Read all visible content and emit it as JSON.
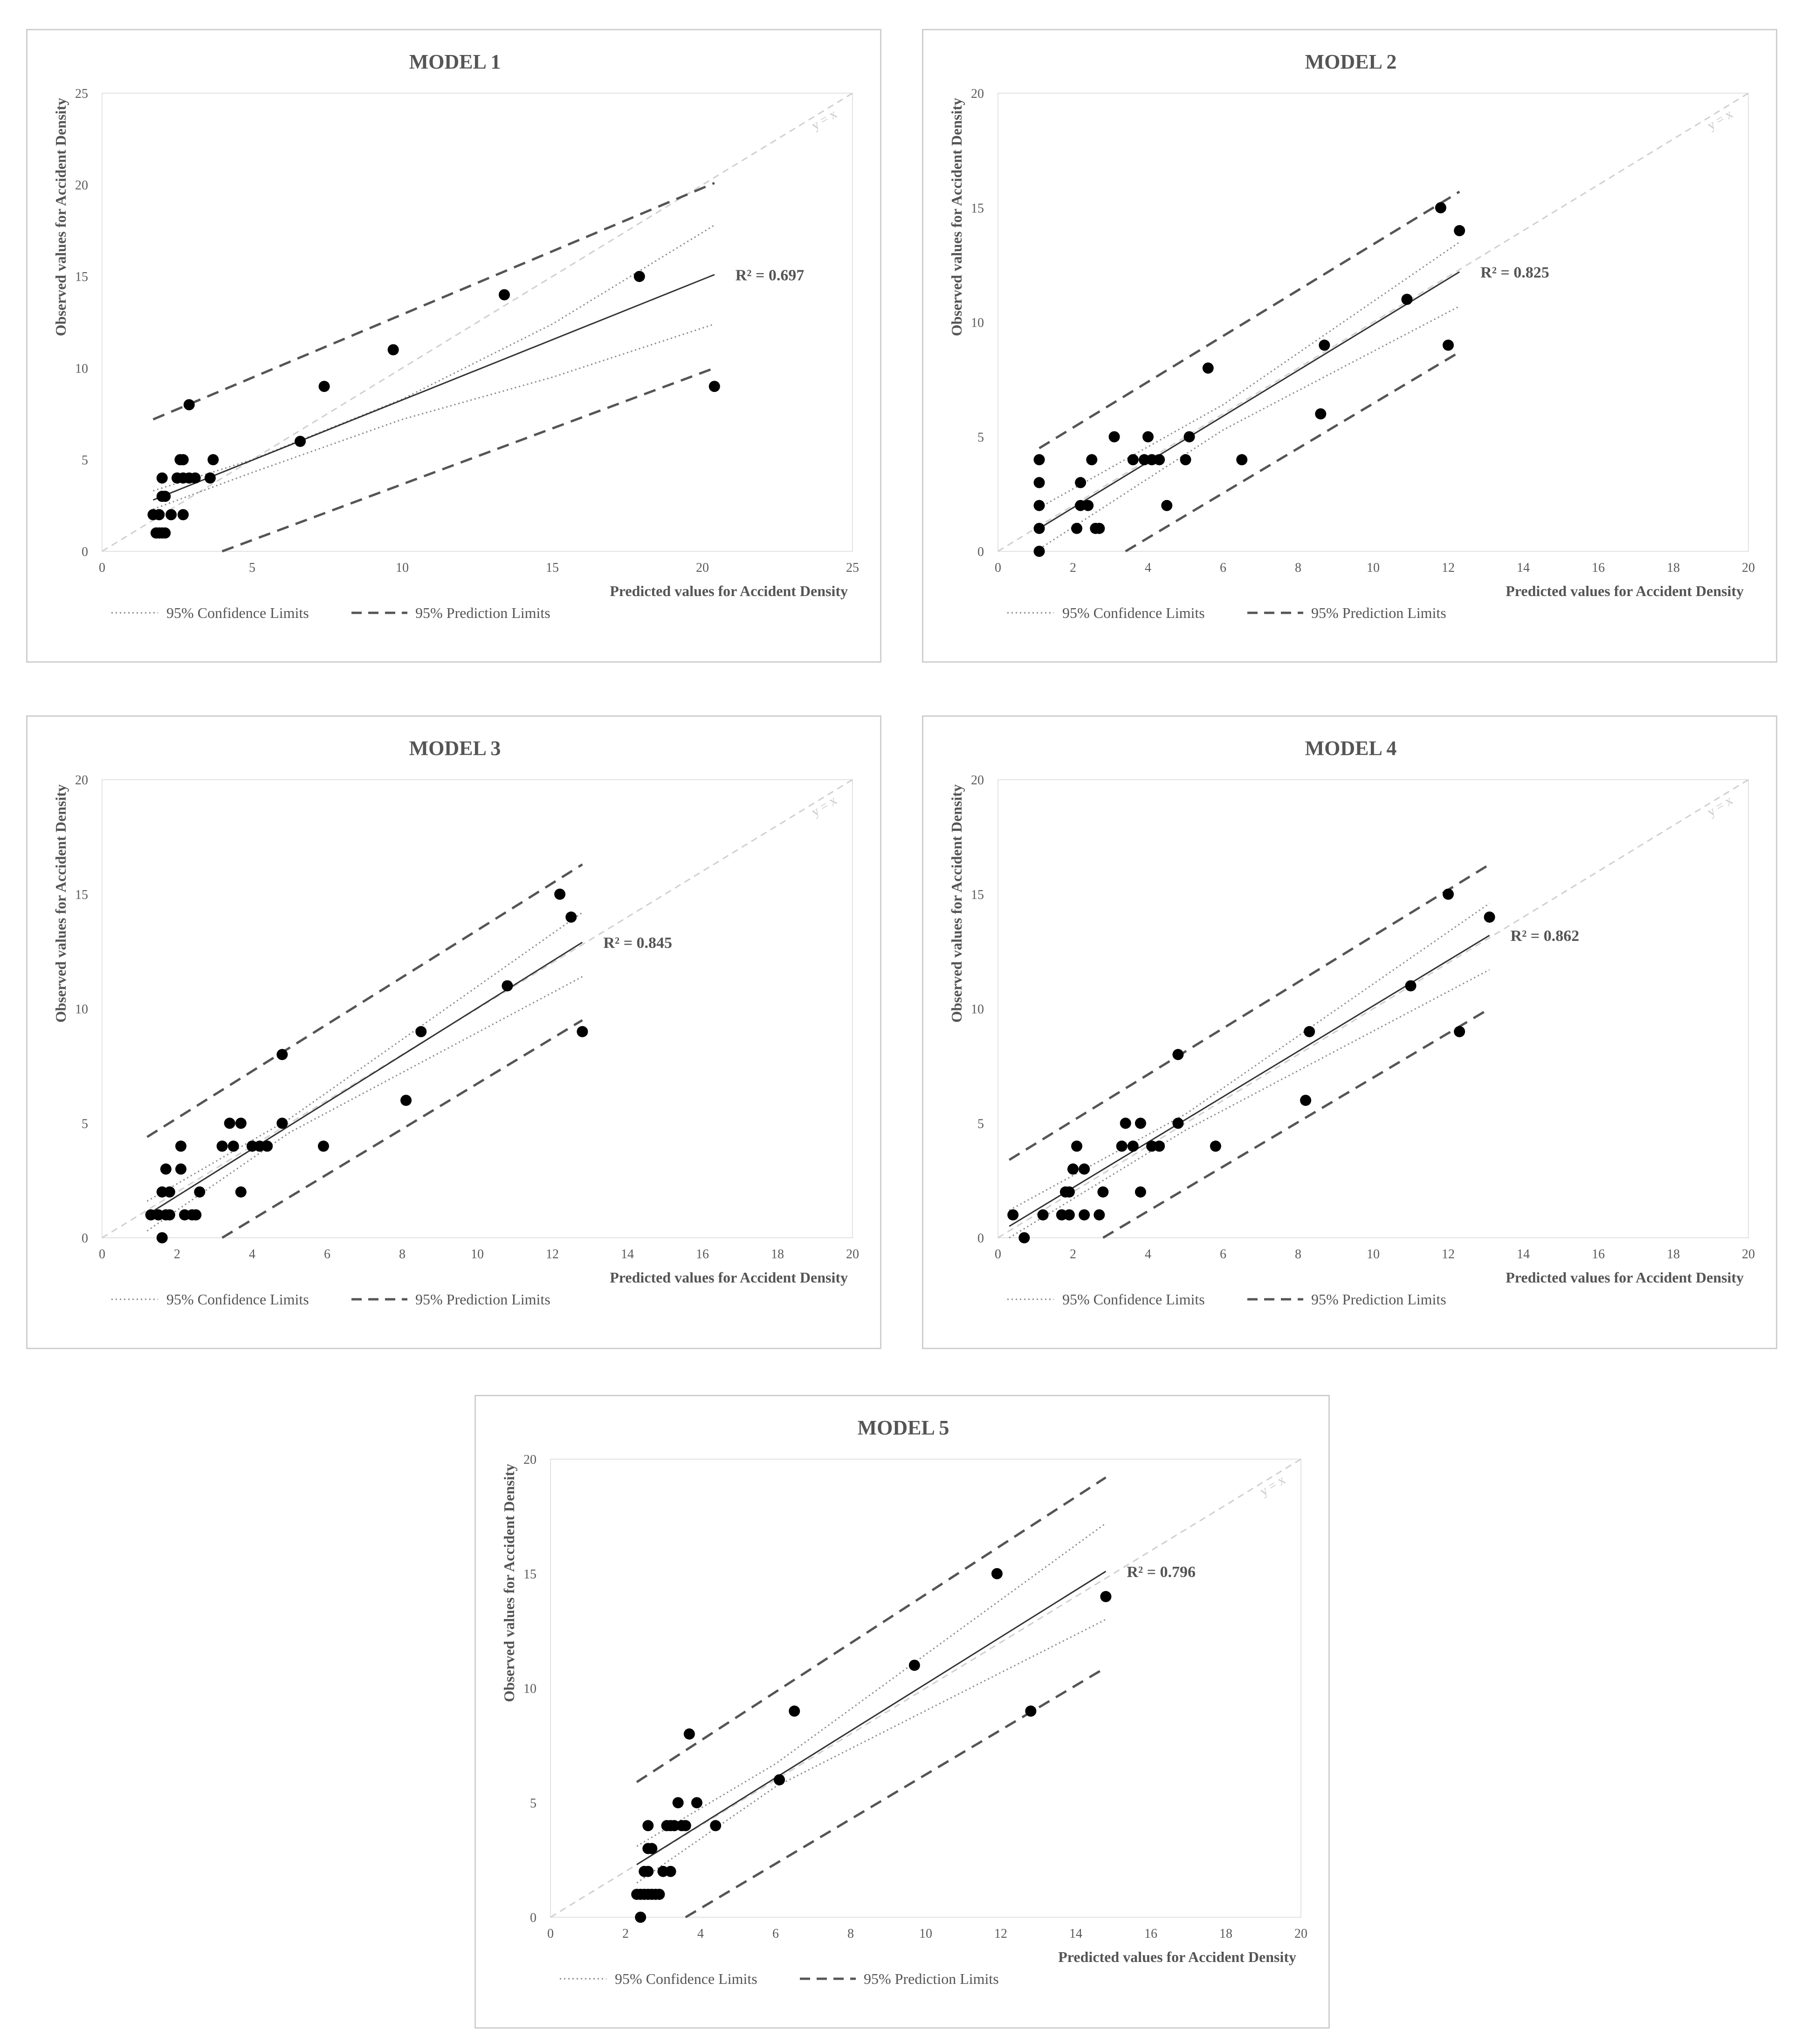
{
  "colors": {
    "points": "#000000",
    "fit_line": "#333333",
    "confidence": "#8a8a8a",
    "prediction": "#555555",
    "identity": "#d0d0d0",
    "axis": "#bbbbbb",
    "text": "#555555"
  },
  "legend": {
    "confidence": "95% Confidence Limits",
    "prediction": "95% Prediction Limits"
  },
  "chart_data": [
    {
      "type": "scatter",
      "title": "MODEL 1",
      "xlabel": "Predicted values for Accident Density",
      "ylabel": "Observed values for Accident Density",
      "xlim": [
        0,
        25
      ],
      "ylim": [
        0,
        25
      ],
      "xticks": [
        0,
        5,
        10,
        15,
        20,
        25
      ],
      "yticks": [
        0,
        5,
        10,
        15,
        20,
        25
      ],
      "r2_label": "R² = 0.697",
      "identity_label": "y = x",
      "legend_position": "bottom-left",
      "points": [
        [
          1.8,
          1
        ],
        [
          1.9,
          1
        ],
        [
          2.0,
          1
        ],
        [
          2.1,
          1
        ],
        [
          1.7,
          2
        ],
        [
          1.9,
          2
        ],
        [
          2.3,
          2
        ],
        [
          2.7,
          2
        ],
        [
          2.0,
          3
        ],
        [
          2.1,
          3
        ],
        [
          2.0,
          4
        ],
        [
          2.5,
          4
        ],
        [
          2.7,
          4
        ],
        [
          2.9,
          4
        ],
        [
          3.1,
          4
        ],
        [
          3.6,
          4
        ],
        [
          2.6,
          5
        ],
        [
          2.7,
          5
        ],
        [
          3.7,
          5
        ],
        [
          2.9,
          8
        ],
        [
          6.6,
          6
        ],
        [
          7.4,
          9
        ],
        [
          9.7,
          11
        ],
        [
          13.4,
          14
        ],
        [
          17.9,
          15
        ],
        [
          20.4,
          9
        ]
      ],
      "fit": [
        [
          1.7,
          2.8
        ],
        [
          20.4,
          15.1
        ]
      ],
      "confidence_upper": [
        [
          1.7,
          3.3
        ],
        [
          5,
          5.0
        ],
        [
          10,
          8.3
        ],
        [
          15,
          12.4
        ],
        [
          20.4,
          17.8
        ]
      ],
      "confidence_lower": [
        [
          1.7,
          2.3
        ],
        [
          5,
          4.3
        ],
        [
          10,
          7.2
        ],
        [
          15,
          9.5
        ],
        [
          20.4,
          12.4
        ]
      ],
      "prediction_upper": [
        [
          1.7,
          7.2
        ],
        [
          20.4,
          20.1
        ]
      ],
      "prediction_lower": [
        [
          4.0,
          0
        ],
        [
          20.4,
          10.0
        ]
      ]
    },
    {
      "type": "scatter",
      "title": "MODEL 2",
      "xlabel": "Predicted values for Accident Density",
      "ylabel": "Observed values for Accident Density",
      "xlim": [
        0,
        20
      ],
      "ylim": [
        0,
        20
      ],
      "xticks": [
        0,
        2,
        4,
        6,
        8,
        10,
        12,
        14,
        16,
        18,
        20
      ],
      "yticks": [
        0,
        5,
        10,
        15,
        20
      ],
      "r2_label": "R² = 0.825",
      "identity_label": "y = x",
      "legend_position": "bottom-left",
      "points": [
        [
          1.1,
          0
        ],
        [
          1.1,
          1
        ],
        [
          1.1,
          2
        ],
        [
          1.1,
          3
        ],
        [
          1.1,
          4
        ],
        [
          2.1,
          1
        ],
        [
          2.6,
          1
        ],
        [
          2.7,
          1
        ],
        [
          2.2,
          2
        ],
        [
          2.4,
          2
        ],
        [
          2.2,
          3
        ],
        [
          2.5,
          4
        ],
        [
          3.6,
          4
        ],
        [
          3.9,
          4
        ],
        [
          4.1,
          4
        ],
        [
          4.3,
          4
        ],
        [
          5.0,
          4
        ],
        [
          6.5,
          4
        ],
        [
          3.1,
          5
        ],
        [
          4.0,
          5
        ],
        [
          5.1,
          5
        ],
        [
          4.5,
          2
        ],
        [
          5.6,
          8
        ],
        [
          8.6,
          6
        ],
        [
          8.7,
          9
        ],
        [
          10.9,
          11
        ],
        [
          11.8,
          15
        ],
        [
          12.0,
          9
        ],
        [
          12.3,
          14
        ]
      ],
      "fit": [
        [
          1.1,
          1.0
        ],
        [
          12.3,
          12.2
        ]
      ],
      "confidence_upper": [
        [
          1.1,
          1.9
        ],
        [
          6,
          6.4
        ],
        [
          12.3,
          13.5
        ]
      ],
      "confidence_lower": [
        [
          1.1,
          0.1
        ],
        [
          6,
          5.3
        ],
        [
          12.3,
          10.7
        ]
      ],
      "prediction_upper": [
        [
          1.1,
          4.5
        ],
        [
          12.3,
          15.7
        ]
      ],
      "prediction_lower": [
        [
          3.4,
          0
        ],
        [
          12.3,
          8.7
        ]
      ]
    },
    {
      "type": "scatter",
      "title": "MODEL 3",
      "xlabel": "Predicted values for Accident Density",
      "ylabel": "Observed values for Accident Density",
      "xlim": [
        0,
        20
      ],
      "ylim": [
        0,
        20
      ],
      "xticks": [
        0,
        2,
        4,
        6,
        8,
        10,
        12,
        14,
        16,
        18,
        20
      ],
      "yticks": [
        0,
        5,
        10,
        15,
        20
      ],
      "r2_label": "R² = 0.845",
      "identity_label": "y = x",
      "legend_position": "bottom-left",
      "points": [
        [
          1.6,
          0
        ],
        [
          1.3,
          1
        ],
        [
          1.5,
          1
        ],
        [
          1.7,
          1
        ],
        [
          1.8,
          1
        ],
        [
          2.2,
          1
        ],
        [
          2.4,
          1
        ],
        [
          2.5,
          1
        ],
        [
          1.6,
          2
        ],
        [
          1.8,
          2
        ],
        [
          2.6,
          2
        ],
        [
          3.7,
          2
        ],
        [
          1.7,
          3
        ],
        [
          2.1,
          3
        ],
        [
          2.1,
          4
        ],
        [
          3.2,
          4
        ],
        [
          3.5,
          4
        ],
        [
          4.0,
          4
        ],
        [
          4.2,
          4
        ],
        [
          4.4,
          4
        ],
        [
          5.9,
          4
        ],
        [
          3.4,
          5
        ],
        [
          3.7,
          5
        ],
        [
          4.8,
          5
        ],
        [
          4.8,
          8
        ],
        [
          8.1,
          6
        ],
        [
          8.5,
          9
        ],
        [
          10.8,
          11
        ],
        [
          12.2,
          15
        ],
        [
          12.5,
          14
        ],
        [
          12.8,
          9
        ]
      ],
      "fit": [
        [
          1.2,
          1.0
        ],
        [
          12.8,
          12.9
        ]
      ],
      "confidence_upper": [
        [
          1.2,
          1.6
        ],
        [
          5,
          5.2
        ],
        [
          12.8,
          14.2
        ]
      ],
      "confidence_lower": [
        [
          1.2,
          0.3
        ],
        [
          5,
          4.6
        ],
        [
          12.8,
          11.4
        ]
      ],
      "prediction_upper": [
        [
          1.2,
          4.4
        ],
        [
          12.8,
          16.3
        ]
      ],
      "prediction_lower": [
        [
          3.2,
          0
        ],
        [
          12.8,
          9.5
        ]
      ]
    },
    {
      "type": "scatter",
      "title": "MODEL 4",
      "xlabel": "Predicted values for Accident Density",
      "ylabel": "Observed values for Accident Density",
      "xlim": [
        0,
        20
      ],
      "ylim": [
        0,
        20
      ],
      "xticks": [
        0,
        2,
        4,
        6,
        8,
        10,
        12,
        14,
        16,
        18,
        20
      ],
      "yticks": [
        0,
        5,
        10,
        15,
        20
      ],
      "r2_label": "R² = 0.862",
      "identity_label": "y = x",
      "legend_position": "bottom-left",
      "points": [
        [
          0.7,
          0
        ],
        [
          0.4,
          1
        ],
        [
          1.2,
          1
        ],
        [
          1.7,
          1
        ],
        [
          1.9,
          1
        ],
        [
          2.3,
          1
        ],
        [
          2.7,
          1
        ],
        [
          1.8,
          2
        ],
        [
          1.9,
          2
        ],
        [
          2.8,
          2
        ],
        [
          3.8,
          2
        ],
        [
          2.0,
          3
        ],
        [
          2.3,
          3
        ],
        [
          2.1,
          4
        ],
        [
          3.3,
          4
        ],
        [
          3.6,
          4
        ],
        [
          4.1,
          4
        ],
        [
          4.3,
          4
        ],
        [
          5.8,
          4
        ],
        [
          3.4,
          5
        ],
        [
          3.8,
          5
        ],
        [
          4.8,
          5
        ],
        [
          4.8,
          8
        ],
        [
          8.2,
          6
        ],
        [
          8.3,
          9
        ],
        [
          11.0,
          11
        ],
        [
          12.0,
          15
        ],
        [
          12.3,
          9
        ],
        [
          13.1,
          14
        ]
      ],
      "fit": [
        [
          0.3,
          0.5
        ],
        [
          13.1,
          13.2
        ]
      ],
      "confidence_upper": [
        [
          0.3,
          1.2
        ],
        [
          5,
          5.4
        ],
        [
          13.1,
          14.6
        ]
      ],
      "confidence_lower": [
        [
          0.3,
          0
        ],
        [
          5,
          4.7
        ],
        [
          13.1,
          11.7
        ]
      ],
      "prediction_upper": [
        [
          0.3,
          3.4
        ],
        [
          13.1,
          16.3
        ]
      ],
      "prediction_lower": [
        [
          2.8,
          0
        ],
        [
          13.1,
          10.0
        ]
      ]
    },
    {
      "type": "scatter",
      "title": "MODEL 5",
      "xlabel": "Predicted values for Accident Density",
      "ylabel": "Observed values for Accident Density",
      "xlim": [
        0,
        20
      ],
      "ylim": [
        0,
        20
      ],
      "xticks": [
        0,
        2,
        4,
        6,
        8,
        10,
        12,
        14,
        16,
        18,
        20
      ],
      "yticks": [
        0,
        5,
        10,
        15,
        20
      ],
      "r2_label": "R² = 0.796",
      "identity_label": "y = x",
      "legend_position": "bottom-left",
      "points": [
        [
          2.4,
          0
        ],
        [
          2.3,
          1
        ],
        [
          2.4,
          1
        ],
        [
          2.5,
          1
        ],
        [
          2.6,
          1
        ],
        [
          2.7,
          1
        ],
        [
          2.8,
          1
        ],
        [
          2.9,
          1
        ],
        [
          2.5,
          2
        ],
        [
          2.6,
          2
        ],
        [
          3.0,
          2
        ],
        [
          3.2,
          2
        ],
        [
          2.6,
          3
        ],
        [
          2.7,
          3
        ],
        [
          2.6,
          4
        ],
        [
          3.1,
          4
        ],
        [
          3.2,
          4
        ],
        [
          3.3,
          4
        ],
        [
          3.5,
          4
        ],
        [
          3.6,
          4
        ],
        [
          4.4,
          4
        ],
        [
          3.4,
          5
        ],
        [
          3.9,
          5
        ],
        [
          3.7,
          8
        ],
        [
          6.1,
          6
        ],
        [
          6.5,
          9
        ],
        [
          9.7,
          11
        ],
        [
          11.9,
          15
        ],
        [
          12.8,
          9
        ],
        [
          14.8,
          14
        ]
      ],
      "fit": [
        [
          2.3,
          2.3
        ],
        [
          14.8,
          15.1
        ]
      ],
      "confidence_upper": [
        [
          2.3,
          3.1
        ],
        [
          6,
          6.7
        ],
        [
          14.8,
          17.2
        ]
      ],
      "confidence_lower": [
        [
          2.3,
          1.5
        ],
        [
          6,
          5.7
        ],
        [
          14.8,
          13.0
        ]
      ],
      "prediction_upper": [
        [
          2.3,
          5.9
        ],
        [
          14.8,
          19.2
        ]
      ],
      "prediction_lower": [
        [
          3.6,
          0
        ],
        [
          14.8,
          10.9
        ]
      ]
    }
  ]
}
